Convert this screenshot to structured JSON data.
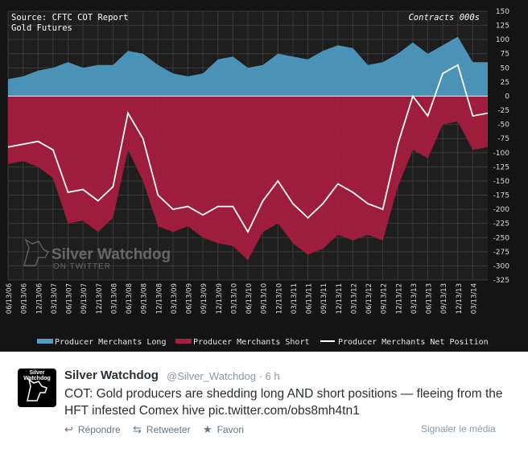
{
  "chart_data": {
    "type": "area",
    "title": "Source: CFTC COT Report",
    "subtitle": "Gold Futures",
    "unit_label": "Contracts 000s",
    "watermark": "Silver Watchdog",
    "watermark_sub": "ON TWITTER",
    "ylim": [
      -325,
      150
    ],
    "yticks": [
      "150",
      "125",
      "100",
      "75",
      "50",
      "25",
      "0",
      "-25",
      "-50",
      "-75",
      "-100",
      "-125",
      "-150",
      "-175",
      "-200",
      "-225",
      "-250",
      "-275",
      "-300",
      "-325"
    ],
    "xticks": [
      "06/13/06",
      "09/13/06",
      "12/13/06",
      "03/13/07",
      "06/13/07",
      "09/13/07",
      "12/13/07",
      "03/13/08",
      "06/13/08",
      "09/13/08",
      "12/13/08",
      "03/13/09",
      "06/13/09",
      "09/13/09",
      "12/13/09",
      "03/13/10",
      "06/13/10",
      "09/13/10",
      "12/13/10",
      "03/13/11",
      "06/13/11",
      "09/13/11",
      "12/13/11",
      "03/13/12",
      "06/13/12",
      "09/13/12",
      "12/13/12",
      "03/13/13",
      "06/13/13",
      "09/13/13",
      "12/13/13",
      "03/13/14"
    ],
    "x": [
      "06/13/06",
      "09/13/06",
      "12/13/06",
      "03/13/07",
      "06/13/07",
      "09/13/07",
      "12/13/07",
      "03/13/08",
      "06/13/08",
      "09/13/08",
      "12/13/08",
      "03/13/09",
      "06/13/09",
      "09/13/09",
      "12/13/09",
      "03/13/10",
      "06/13/10",
      "09/13/10",
      "12/13/10",
      "03/13/11",
      "06/13/11",
      "09/13/11",
      "12/13/11",
      "03/13/12",
      "06/13/12",
      "09/13/12",
      "12/13/12",
      "03/13/13",
      "06/13/13",
      "09/13/13",
      "12/13/13",
      "03/13/14",
      "06/13/14"
    ],
    "series": [
      {
        "name": "Producer Merchants Long",
        "color": "#4f9ec6",
        "values": [
          30,
          35,
          45,
          50,
          60,
          50,
          55,
          55,
          80,
          75,
          55,
          40,
          35,
          40,
          65,
          70,
          50,
          55,
          75,
          70,
          65,
          80,
          90,
          85,
          55,
          60,
          75,
          95,
          75,
          90,
          105,
          60,
          60
        ]
      },
      {
        "name": "Producer Merchants Short",
        "color": "#a51d3f",
        "values": [
          -120,
          -115,
          -125,
          -145,
          -225,
          -220,
          -240,
          -215,
          -95,
          -150,
          -230,
          -240,
          -230,
          -250,
          -260,
          -265,
          -290,
          -240,
          -225,
          -260,
          -280,
          -270,
          -245,
          -255,
          -245,
          -255,
          -160,
          -95,
          -110,
          -50,
          -45,
          -95,
          -90
        ]
      },
      {
        "name": "Producer Merchants Net Position",
        "color": "#ffffff",
        "values": [
          -90,
          -85,
          -80,
          -95,
          -170,
          -165,
          -185,
          -160,
          -30,
          -75,
          -175,
          -200,
          -195,
          -210,
          -195,
          -195,
          -240,
          -185,
          -150,
          -190,
          -215,
          -190,
          -155,
          -170,
          -190,
          -200,
          -85,
          0,
          -35,
          40,
          55,
          -35,
          -30
        ]
      }
    ],
    "legend_position": "bottom"
  },
  "tweet": {
    "avatar_text": "Silver Watchdog",
    "name": "Silver Watchdog",
    "handle": "@Silver_Watchdog · 6 h",
    "text": "COT: Gold producers are shedding long AND short positions — fleeing from the HFT infested Comex hive pic.twitter.com/obs8mh4tn1",
    "actions": [
      {
        "label": "Répondre",
        "icon": "reply-icon",
        "glyph": "↩"
      },
      {
        "label": "Retweeter",
        "icon": "retweet-icon",
        "glyph": "⇆"
      },
      {
        "label": "Favori",
        "icon": "star-icon",
        "glyph": "★"
      }
    ],
    "report_media": "Signaler le média"
  }
}
